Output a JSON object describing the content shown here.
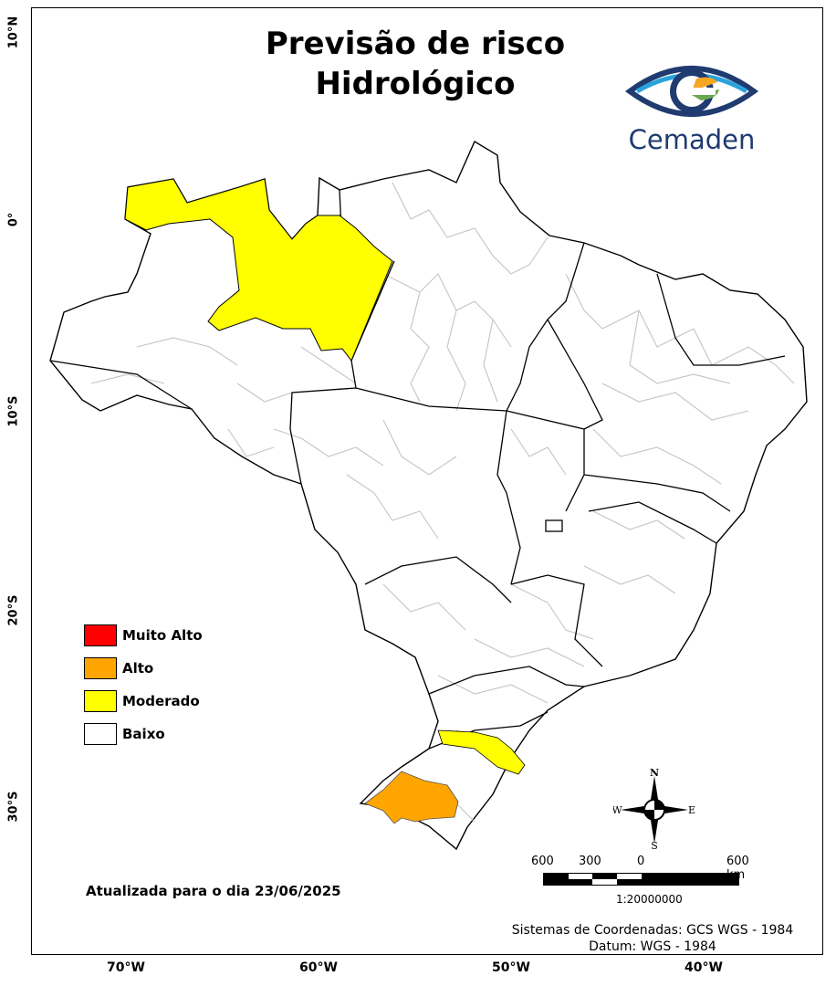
{
  "title_line1": "Previsão de risco",
  "title_line2": "Hidrológico",
  "logo_text": "Cemaden",
  "latitude_labels": [
    "10°N",
    "0°",
    "10°S",
    "20°S",
    "30°S"
  ],
  "longitude_labels": [
    "70°W",
    "60°W",
    "50°W",
    "40°W"
  ],
  "legend": [
    {
      "label": "Muito Alto",
      "color": "#ff0000"
    },
    {
      "label": "Alto",
      "color": "#ffa500"
    },
    {
      "label": "Moderado",
      "color": "#ffff00"
    },
    {
      "label": "Baixo",
      "color": "#ffffff"
    }
  ],
  "updated_text": "Atualizada para o dia 23/06/2025",
  "coords_line1": "Sistemas de Coordenadas: GCS WGS - 1984",
  "coords_line2": "Datum: WGS - 1984",
  "scale_labels": [
    "600",
    "300",
    "0",
    "600 km"
  ],
  "scale_ratio": "1:20000000",
  "compass": {
    "n": "N",
    "s": "S",
    "e": "E",
    "w": "W"
  },
  "colors": {
    "moderado": "#ffff00",
    "alto": "#ffa500",
    "baixo": "#ffffff",
    "boundary": "#bdbdbd",
    "state_line": "#000000",
    "logo_blue": "#1f3b70"
  }
}
